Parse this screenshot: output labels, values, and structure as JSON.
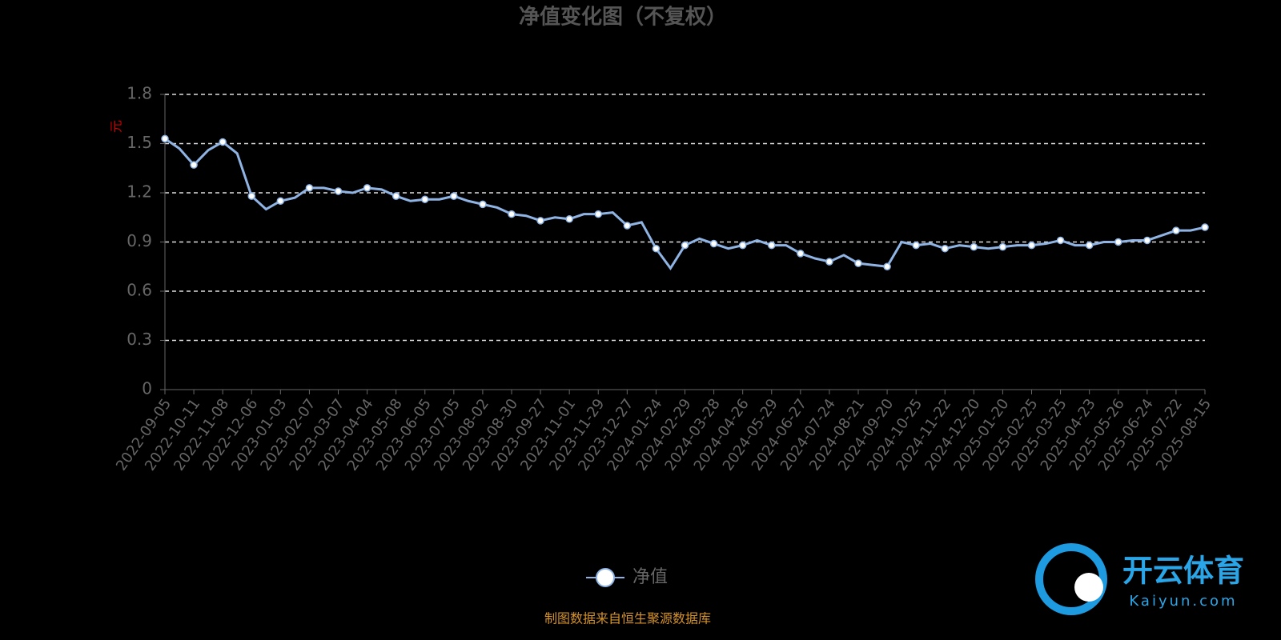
{
  "chart_data": {
    "type": "line",
    "title": "净值变化图（不复权）",
    "y_label": "元",
    "categories": [
      "2022-09-05",
      null,
      "2022-10-11",
      null,
      "2022-11-08",
      null,
      "2022-12-06",
      null,
      "2023-01-03",
      null,
      "2023-02-07",
      null,
      "2023-03-07",
      null,
      "2023-04-04",
      null,
      "2023-05-08",
      null,
      "2023-06-05",
      null,
      "2023-07-05",
      null,
      "2023-08-02",
      null,
      "2023-08-30",
      null,
      "2023-09-27",
      null,
      "2023-11-01",
      null,
      "2023-11-29",
      null,
      "2023-12-27",
      null,
      "2024-01-24",
      null,
      "2024-02-29",
      null,
      "2024-03-28",
      null,
      "2024-04-26",
      null,
      "2024-05-29",
      null,
      "2024-06-27",
      null,
      "2024-07-24",
      null,
      "2024-08-21",
      null,
      "2024-09-20",
      null,
      "2024-10-25",
      null,
      "2024-11-22",
      null,
      "2024-12-20",
      null,
      "2025-01-20",
      null,
      "2025-02-25",
      null,
      "2025-03-25",
      null,
      "2025-04-23",
      null,
      "2025-05-26",
      null,
      "2025-06-24",
      null,
      "2025-07-22",
      null,
      "2025-08-15"
    ],
    "series": [
      {
        "name": "净值",
        "color": "#8fb4e3",
        "values": [
          1.53,
          1.47,
          1.37,
          1.46,
          1.51,
          1.44,
          1.18,
          1.1,
          1.15,
          1.17,
          1.23,
          1.23,
          1.21,
          1.2,
          1.23,
          1.22,
          1.18,
          1.15,
          1.16,
          1.16,
          1.18,
          1.15,
          1.13,
          1.11,
          1.07,
          1.06,
          1.03,
          1.05,
          1.04,
          1.07,
          1.07,
          1.08,
          1.0,
          1.02,
          0.86,
          0.74,
          0.88,
          0.92,
          0.89,
          0.86,
          0.88,
          0.91,
          0.88,
          0.88,
          0.83,
          0.8,
          0.78,
          0.82,
          0.77,
          0.76,
          0.75,
          0.9,
          0.88,
          0.89,
          0.86,
          0.88,
          0.87,
          0.86,
          0.87,
          0.88,
          0.88,
          0.89,
          0.91,
          0.88,
          0.88,
          0.9,
          0.9,
          0.91,
          0.91,
          0.94,
          0.97,
          0.97,
          0.99
        ]
      }
    ],
    "ylim": [
      0,
      1.8
    ],
    "yticks": [
      0,
      0.3,
      0.6,
      0.9,
      1.2,
      1.5,
      1.8
    ],
    "grid": true,
    "source": "制图数据来自恒生聚源数据库",
    "watermark": {
      "brand": "开云体育",
      "url": "Kaiyun.com"
    }
  }
}
